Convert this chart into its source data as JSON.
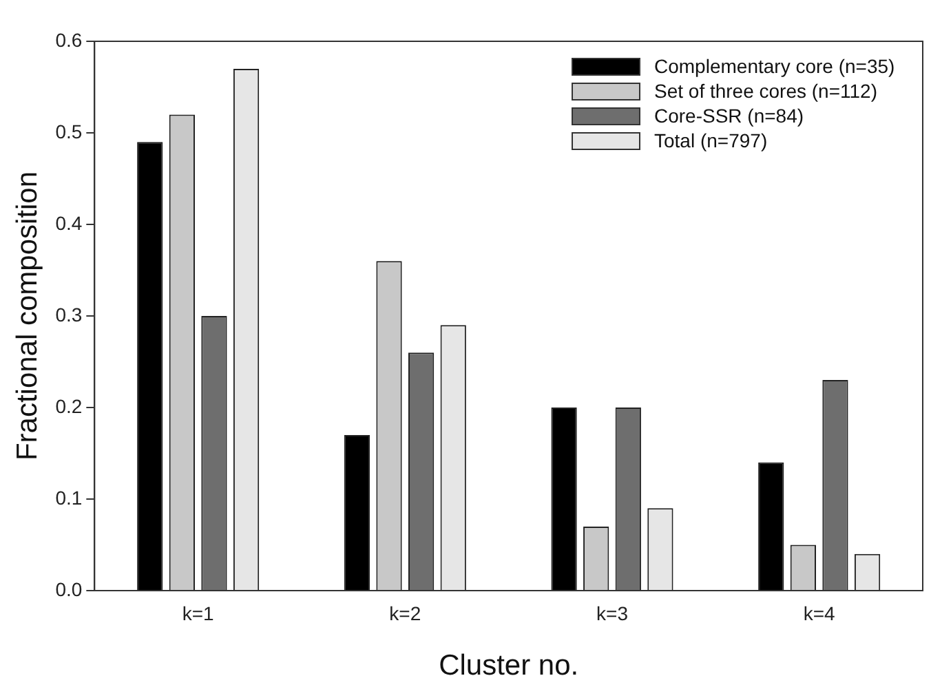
{
  "chart_data": {
    "type": "bar",
    "xlabel": "Cluster no.",
    "ylabel": "Fractional composition",
    "categories": [
      "k=1",
      "k=2",
      "k=3",
      "k=4"
    ],
    "series": [
      {
        "name": "Complementary core (n=35)",
        "color": "#000000",
        "values": [
          0.49,
          0.17,
          0.2,
          0.14
        ]
      },
      {
        "name": "Set of three cores (n=112)",
        "color": "#c8c8c8",
        "values": [
          0.52,
          0.36,
          0.07,
          0.05
        ]
      },
      {
        "name": "Core-SSR (n=84)",
        "color": "#6e6e6e",
        "values": [
          0.3,
          0.26,
          0.2,
          0.23
        ]
      },
      {
        "name": "Total (n=797)",
        "color": "#e6e6e6",
        "values": [
          0.57,
          0.29,
          0.09,
          0.04
        ]
      }
    ],
    "ylim": [
      0,
      0.6
    ],
    "yticks": [
      "0.0",
      0.1,
      0.2,
      0.3,
      0.4,
      0.5,
      0.6
    ],
    "grid": false,
    "legend": "top right"
  }
}
